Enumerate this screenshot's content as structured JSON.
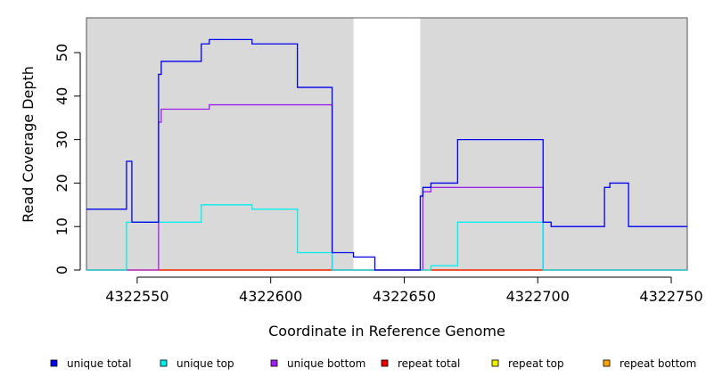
{
  "chart_data": {
    "type": "line",
    "xlabel": "Coordinate in Reference Genome",
    "ylabel": "Read Coverage Depth",
    "xlim": [
      4322531,
      4322756
    ],
    "ylim": [
      0,
      58
    ],
    "x_ticks": [
      4322550,
      4322600,
      4322650,
      4322700,
      4322750
    ],
    "y_ticks": [
      0,
      10,
      20,
      30,
      40,
      50
    ],
    "shaded_ranges": [
      [
        4322531,
        4322631
      ],
      [
        4322656,
        4322756
      ]
    ],
    "legend_position": "bottom",
    "series": [
      {
        "name": "unique total",
        "color": "#0000ee",
        "step": [
          [
            4322531,
            14
          ],
          [
            4322546,
            25
          ],
          [
            4322548,
            11
          ],
          [
            4322558,
            45
          ],
          [
            4322559,
            48
          ],
          [
            4322574,
            52
          ],
          [
            4322577,
            53
          ],
          [
            4322593,
            52
          ],
          [
            4322610,
            42
          ],
          [
            4322623,
            4
          ],
          [
            4322631,
            3
          ],
          [
            4322639,
            0
          ],
          [
            4322656,
            17
          ],
          [
            4322657,
            19
          ],
          [
            4322660,
            20
          ],
          [
            4322670,
            30
          ],
          [
            4322702,
            11
          ],
          [
            4322705,
            10
          ],
          [
            4322725,
            19
          ],
          [
            4322727,
            20
          ],
          [
            4322734,
            10
          ],
          [
            4322756,
            10
          ]
        ]
      },
      {
        "name": "unique top",
        "color": "#00eeee",
        "step": [
          [
            4322531,
            0
          ],
          [
            4322546,
            11
          ],
          [
            4322574,
            15
          ],
          [
            4322593,
            14
          ],
          [
            4322610,
            4
          ],
          [
            4322623,
            0
          ],
          [
            4322656,
            0
          ],
          [
            4322660,
            1
          ],
          [
            4322670,
            11
          ],
          [
            4322702,
            0
          ],
          [
            4322756,
            0
          ]
        ]
      },
      {
        "name": "unique bottom",
        "color": "#a020f0",
        "step": [
          [
            4322531,
            0
          ],
          [
            4322558,
            34
          ],
          [
            4322559,
            37
          ],
          [
            4322577,
            38
          ],
          [
            4322623,
            0
          ],
          [
            4322656,
            0
          ],
          [
            4322657,
            18
          ],
          [
            4322660,
            19
          ],
          [
            4322702,
            0
          ],
          [
            4322756,
            0
          ]
        ]
      },
      {
        "name": "repeat total",
        "color": "#ee0000",
        "step": [
          [
            4322531,
            0
          ],
          [
            4322756,
            0
          ]
        ]
      },
      {
        "name": "repeat top",
        "color": "#eeee00",
        "step": [
          [
            4322531,
            0
          ],
          [
            4322756,
            0
          ]
        ]
      },
      {
        "name": "repeat bottom",
        "color": "#ffa500",
        "step": [
          [
            4322531,
            0
          ],
          [
            4322756,
            0
          ]
        ]
      }
    ]
  }
}
